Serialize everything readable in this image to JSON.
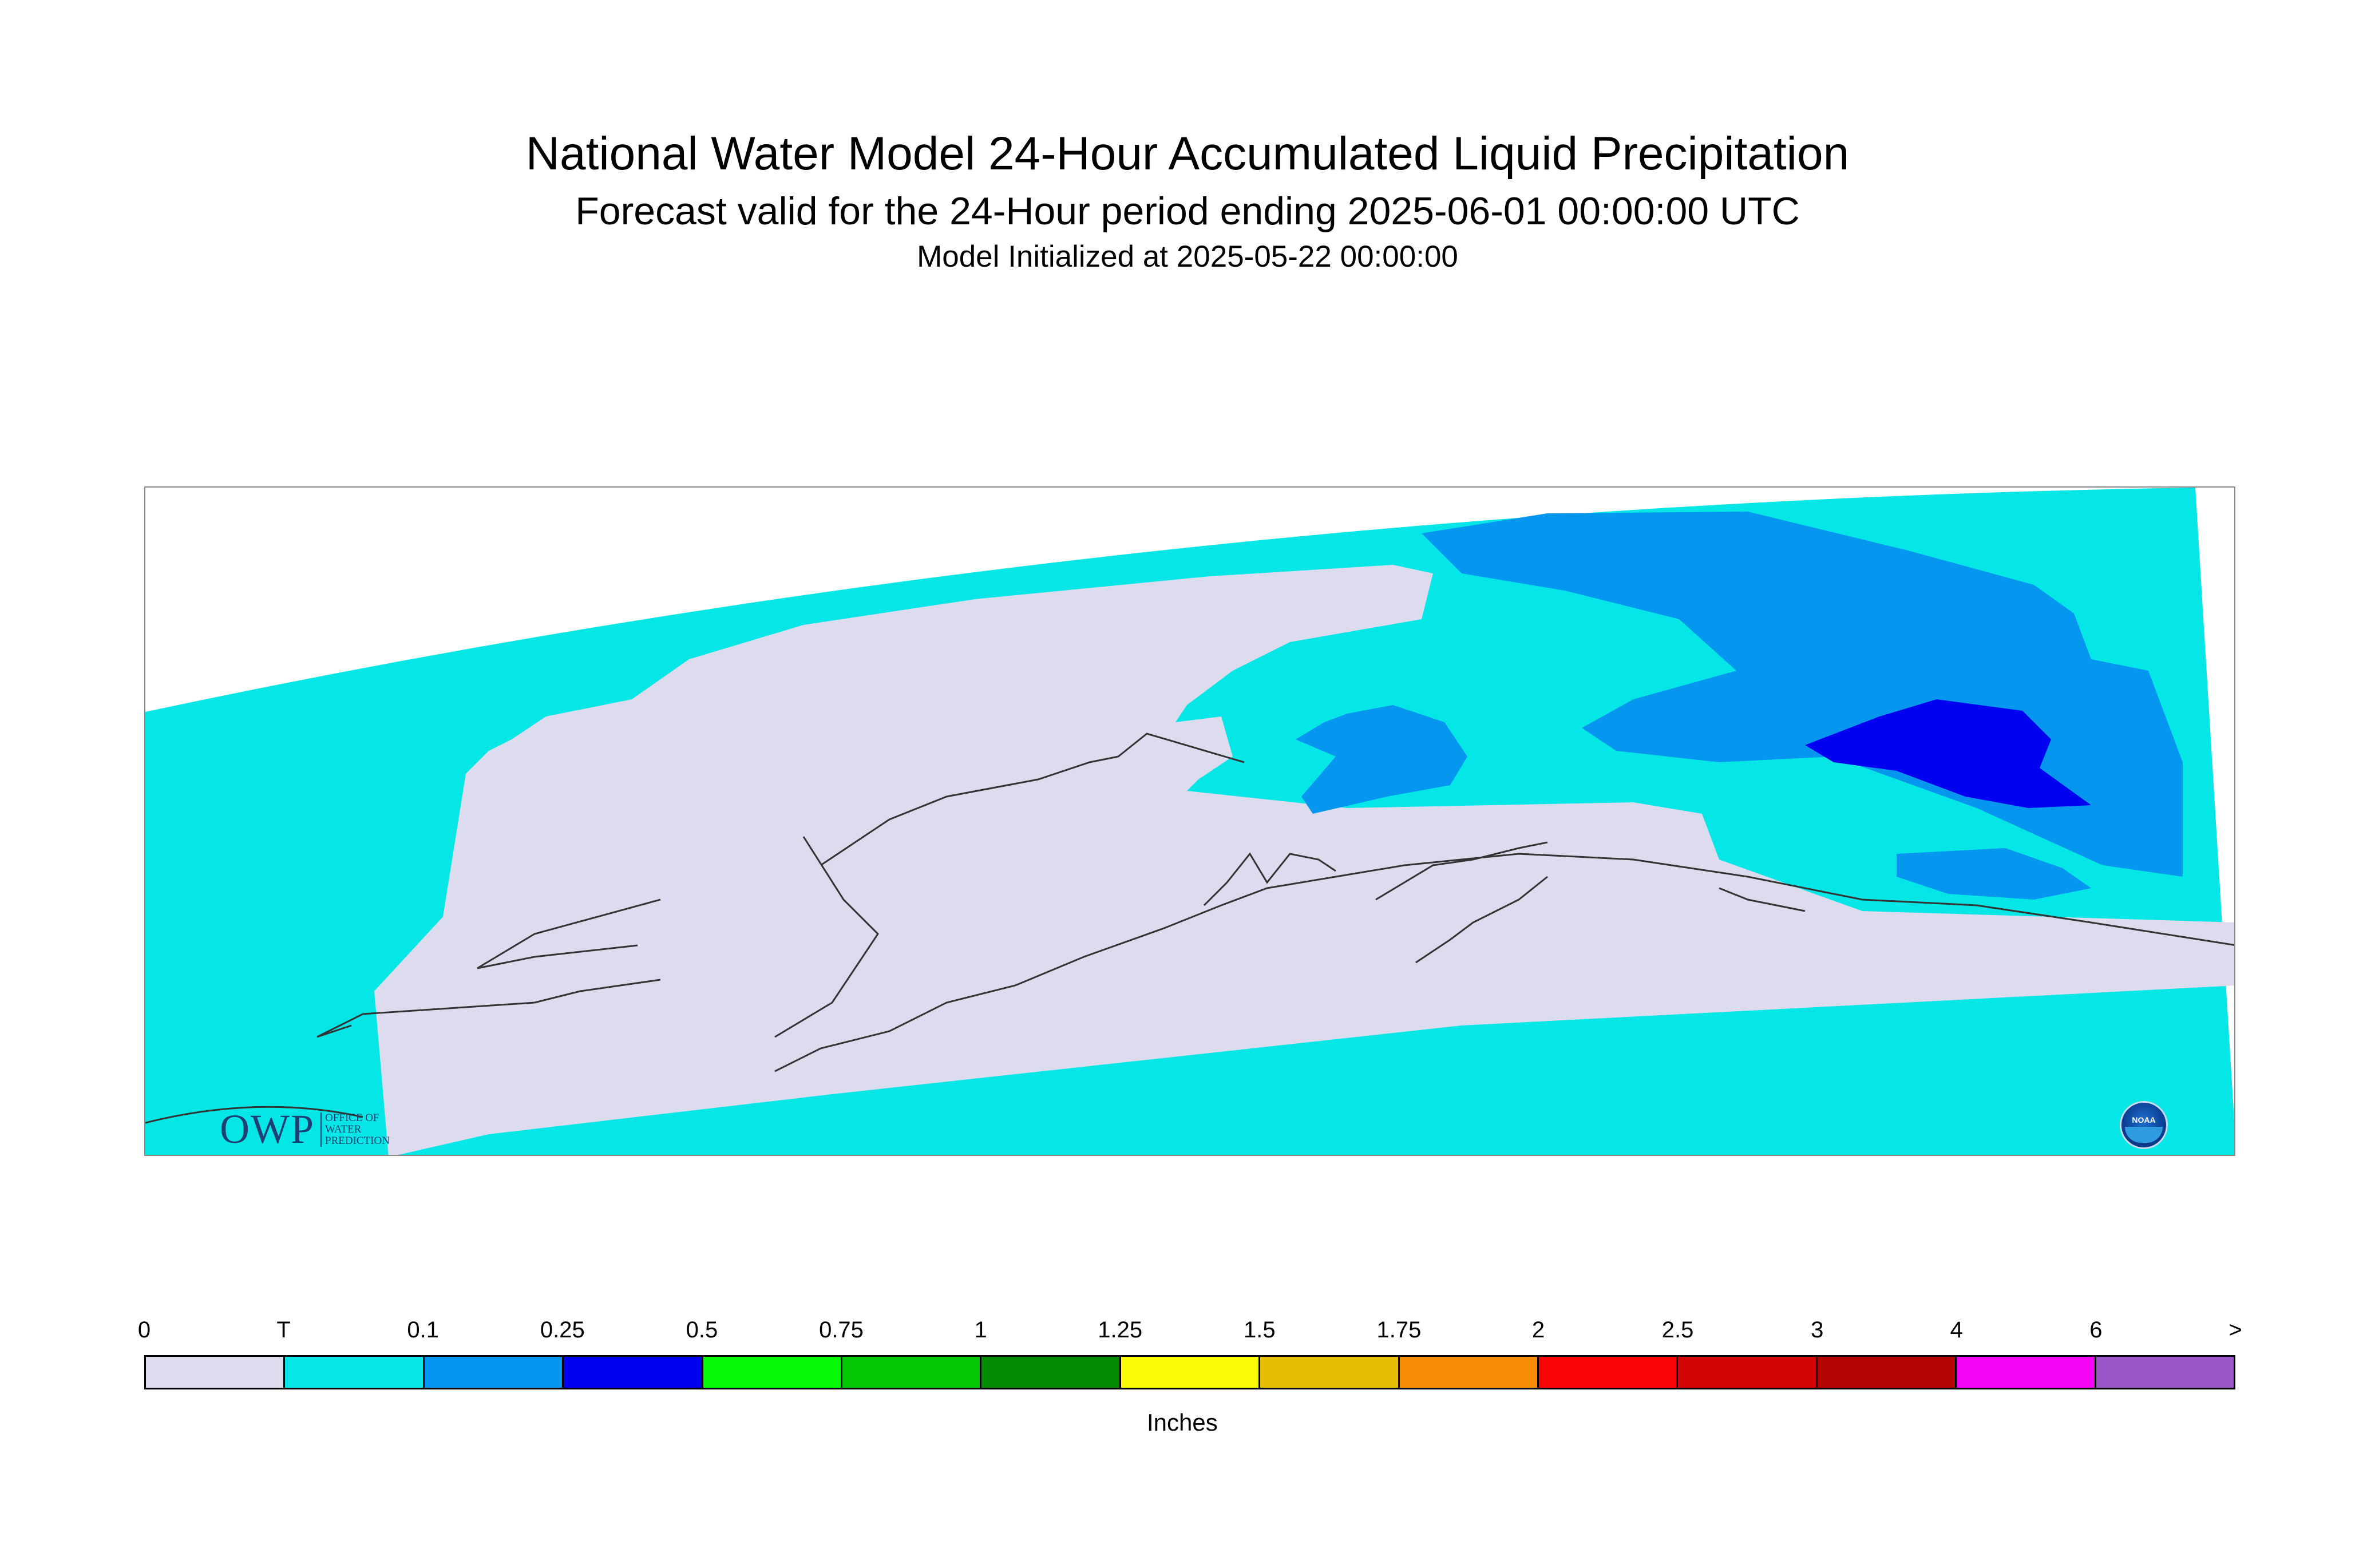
{
  "title": "National Water Model 24-Hour Accumulated Liquid Precipitation",
  "subtitle": "Forecast valid for the 24-Hour period ending 2025-06-01 00:00:00 UTC",
  "init_line": "Model Initialized at 2025-05-22 00:00:00",
  "logos": {
    "owp_letters": "OWP",
    "owp_sub": [
      "OFFICE OF",
      "WATER",
      "PREDICTION"
    ],
    "noaa_text": "NOAA"
  },
  "legend": {
    "unit": "Inches",
    "labels": [
      "0",
      "T",
      "0.1",
      "0.25",
      "0.5",
      "0.75",
      "1",
      "1.25",
      "1.5",
      "1.75",
      "2",
      "2.5",
      "3",
      "4",
      "6",
      ">"
    ],
    "colors": [
      "#dcdcee",
      "#05e6e6",
      "#0596f0",
      "#0000f0",
      "#05fa05",
      "#05c805",
      "#058c05",
      "#fafa05",
      "#e6be05",
      "#fa8c05",
      "#fa0505",
      "#d20505",
      "#b40505",
      "#f505f5",
      "#9a55c8"
    ]
  },
  "map_colors": {
    "trace": "#05e6e6",
    "zero": "#dcdcee",
    "p01": "#0596f0",
    "p025": "#0000f0",
    "coast": "#333333"
  }
}
